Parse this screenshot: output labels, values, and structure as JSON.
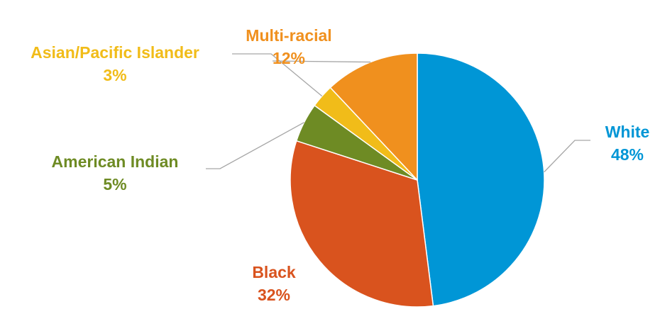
{
  "chart_data": {
    "type": "pie",
    "title": "",
    "start_angle_deg": 0,
    "direction": "clockwise",
    "slices": [
      {
        "name": "White",
        "value": 48,
        "label": "48%",
        "color": "#0096D6"
      },
      {
        "name": "Black",
        "value": 32,
        "label": "32%",
        "color": "#D9531E"
      },
      {
        "name": "American Indian",
        "value": 5,
        "label": "5%",
        "color": "#6E8B24"
      },
      {
        "name": "Asian/Pacific Islander",
        "value": 3,
        "label": "3%",
        "color": "#F1BC19"
      },
      {
        "name": "Multi-racial",
        "value": 12,
        "label": "12%",
        "color": "#F0901E"
      }
    ],
    "legend": "none (data labels with leader lines)",
    "leader_line_color": "#A6A6A6"
  }
}
